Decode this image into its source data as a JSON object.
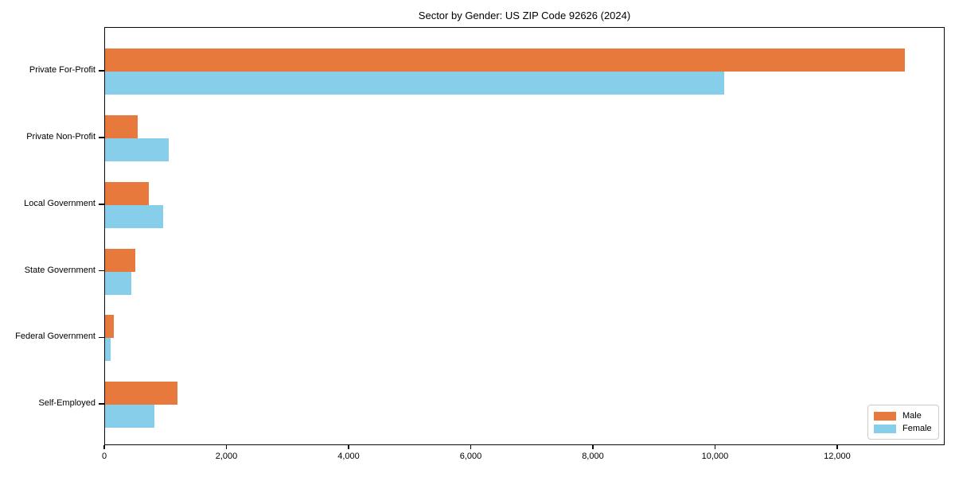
{
  "chart_data": {
    "type": "bar",
    "orientation": "horizontal",
    "title": "Sector by Gender: US ZIP Code 92626 (2024)",
    "categories": [
      "Private For-Profit",
      "Private Non-Profit",
      "Local Government",
      "State Government",
      "Federal Government",
      "Self-Employed"
    ],
    "series": [
      {
        "name": "Male",
        "color": "#e8793d",
        "values": [
          13100,
          540,
          720,
          490,
          140,
          1180
        ]
      },
      {
        "name": "Female",
        "color": "#87ceeb",
        "values": [
          10140,
          1040,
          950,
          430,
          90,
          810
        ]
      }
    ],
    "xlabel": "",
    "ylabel": "",
    "xlim": [
      0,
      13760
    ],
    "xticks": [
      0,
      2000,
      4000,
      6000,
      8000,
      10000,
      12000
    ],
    "xtick_labels": [
      "0",
      "2,000",
      "4,000",
      "6,000",
      "8,000",
      "10,000",
      "12,000"
    ],
    "grid": false,
    "legend_position": "lower right",
    "legend": [
      {
        "label": "Male",
        "color": "#e8793d"
      },
      {
        "label": "Female",
        "color": "#87ceeb"
      }
    ]
  }
}
